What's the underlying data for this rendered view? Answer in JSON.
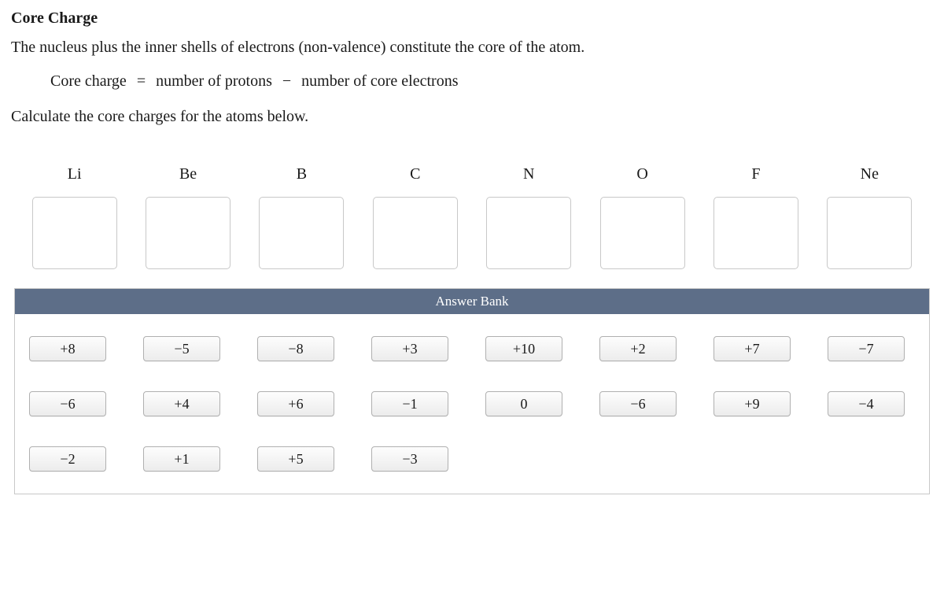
{
  "title": "Core Charge",
  "intro": "The nucleus plus the inner shells of electrons (non-valence) constitute the core of the atom.",
  "formula": {
    "lhs": "Core charge",
    "eq": "=",
    "rhs_a": "number of protons",
    "minus": "−",
    "rhs_b": "number of core electrons"
  },
  "instruction": "Calculate the core charges for the atoms below.",
  "atoms": [
    "Li",
    "Be",
    "B",
    "C",
    "N",
    "O",
    "F",
    "Ne"
  ],
  "answer_bank": {
    "header": "Answer Bank",
    "rows": [
      [
        "+8",
        "−5",
        "−8",
        "+3",
        "+10",
        "+2",
        "+7",
        "−7"
      ],
      [
        "−6",
        "+4",
        "+6",
        "−1",
        "0",
        "−6",
        "+9",
        "−4"
      ],
      [
        "−2",
        "+1",
        "+5",
        "−3"
      ]
    ]
  },
  "colors": {
    "bank_header_bg": "#5d6e88",
    "border": "#c8c8c8",
    "chip_border": "#b0b0b0"
  }
}
